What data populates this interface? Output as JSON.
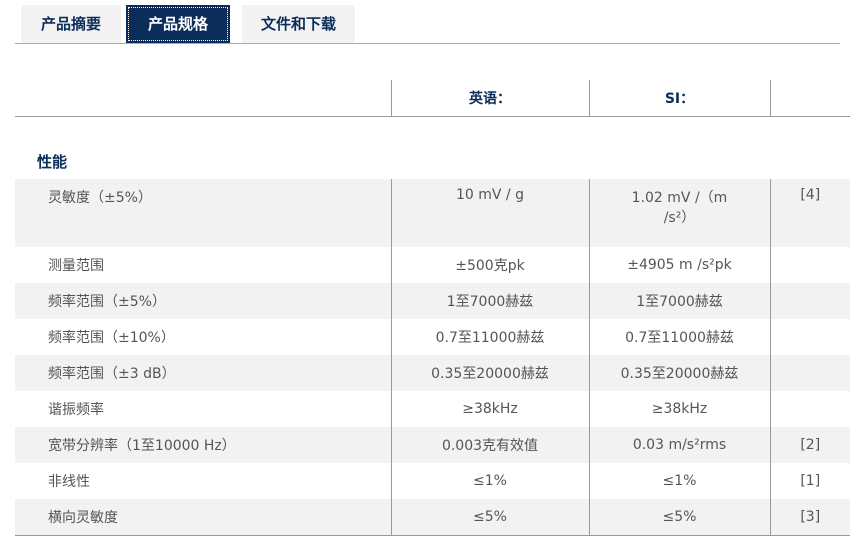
{
  "tabs": [
    {
      "label": "产品摘要",
      "active": false
    },
    {
      "label": "产品规格",
      "active": true
    },
    {
      "label": "文件和下载",
      "active": false
    }
  ],
  "table": {
    "headers": [
      "",
      "英语：",
      "SI：",
      ""
    ],
    "section": "性能",
    "rows": [
      {
        "label": "灵敏度（±5%）",
        "english": "10 mV / g",
        "si": "1.02 mV /（m /s²）",
        "note": "[4]"
      },
      {
        "label": "测量范围",
        "english": "±500克pk",
        "si": "±4905 m /s²pk",
        "note": ""
      },
      {
        "label": "频率范围（±5%）",
        "english": "1至7000赫兹",
        "si": "1至7000赫兹",
        "note": ""
      },
      {
        "label": "频率范围（±10%）",
        "english": "0.7至11000赫兹",
        "si": "0.7至11000赫兹",
        "note": ""
      },
      {
        "label": "频率范围（±3 dB）",
        "english": "0.35至20000赫兹",
        "si": "0.35至20000赫兹",
        "note": ""
      },
      {
        "label": "谐振频率",
        "english": "≥38kHz",
        "si": "≥38kHz",
        "note": ""
      },
      {
        "label": "宽带分辨率（1至10000 Hz）",
        "english": "0.003克有效值",
        "si": "0.03 m/s²rms",
        "note": "[2]"
      },
      {
        "label": "非线性",
        "english": "≤1%",
        "si": "≤1%",
        "note": "[1]"
      },
      {
        "label": "横向灵敏度",
        "english": "≤5%",
        "si": "≤5%",
        "note": "[3]"
      }
    ]
  },
  "colors": {
    "brand": "#0c2d5a",
    "row_alt": "#f2f2f2"
  }
}
